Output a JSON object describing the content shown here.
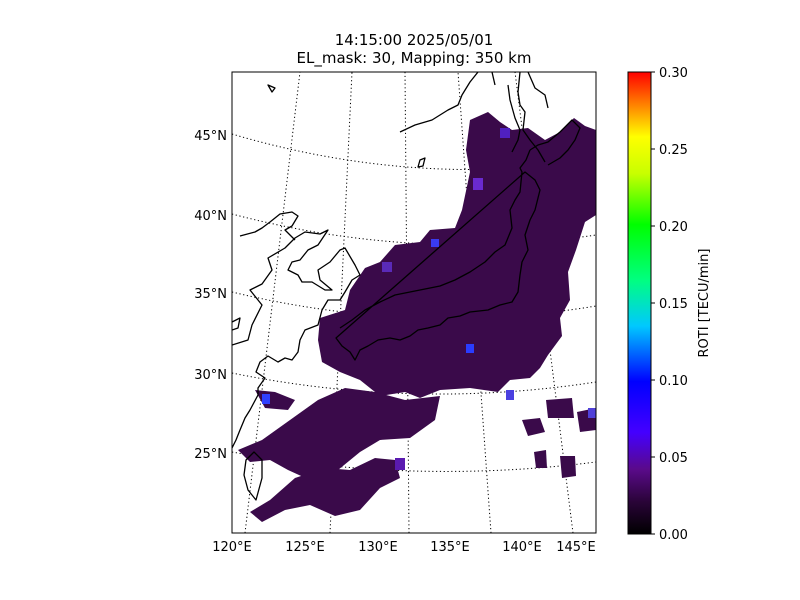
{
  "title": {
    "line1": "14:15:00 2025/05/01",
    "line2": "EL_mask: 30, Mapping: 350 km"
  },
  "map": {
    "lon_range": [
      120,
      145
    ],
    "lat_range": [
      20,
      49
    ],
    "lon_ticks": [
      "120°E",
      "125°E",
      "130°E",
      "135°E",
      "140°E",
      "145°E"
    ],
    "lat_ticks": [
      "25°N",
      "30°N",
      "35°N",
      "40°N",
      "45°N"
    ],
    "lon_tick_values": [
      120,
      125,
      130,
      135,
      140,
      145
    ],
    "lat_tick_values": [
      25,
      30,
      35,
      40,
      45
    ],
    "gridlines": "dotted",
    "data_region_description_color": "#3a0a4a"
  },
  "colorbar": {
    "label": "ROTI [TECU/min]",
    "ticks": [
      "0.00",
      "0.05",
      "0.10",
      "0.15",
      "0.20",
      "0.25",
      "0.30"
    ],
    "tick_values": [
      0,
      0.05,
      0.1,
      0.15,
      0.2,
      0.25,
      0.3
    ],
    "range": [
      0,
      0.3
    ],
    "colormap": [
      "#000000",
      "#3a0a4a",
      "#6a00c8",
      "#0000ff",
      "#00ffff",
      "#00ff00",
      "#ffff00",
      "#ff8000",
      "#ff0000"
    ]
  }
}
